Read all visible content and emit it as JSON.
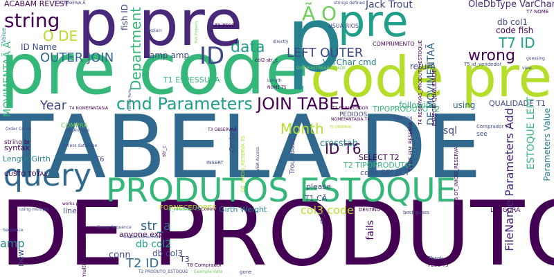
{
  "colors": {
    "background": "#ffffff",
    "dark_purple": "#440154",
    "purple": "#482878",
    "indigo": "#3e4989",
    "blue": "#31688e",
    "teal": "#26828e",
    "teal_green": "#1f9e89",
    "green": "#35b779",
    "light_green": "#6ece58",
    "lime": "#b5de2b",
    "yellow": "#fde725"
  },
  "words": {
    "tabela_de": "TABELA DE",
    "de_produtos": "DE PRODUTOS",
    "pre_code_left": "pre code",
    "code_pre_right": "code pre",
    "p_pre": "p pre",
    "p_big": "p",
    "pre_top": "pre",
    "produtos_estoque": "PRODUTOS ESTOQUE",
    "query": "query",
    "cmd_parameters": "cmd Parameters",
    "join_tabela": "JOIN TABELA",
    "string": "string",
    "a_o": "Ã O",
    "id_top": "ID",
    "data": "data",
    "left_outer": "LEFT OUTER",
    "wrong": "wrong",
    "t7_id": "T7 ID",
    "outer_join": "OUTER JOIN",
    "o_de": "O DE",
    "year": "Year",
    "month": "Month",
    "id_t6": "ID T6",
    "t2_id": "T2 ID",
    "str_a": "str_a",
    "db_col2": "db col2",
    "db_col3": "db col3",
    "conn": "conn",
    "amp": "amp",
    "amp_amp": "amp amp",
    "fails": "fails",
    "col3_code": "col3 code",
    "sql": "sql",
    "crosstab": "crosstab",
    "fish_id": "fish ID",
    "department": "Department",
    "movimenta_left": "MOVIMENTAÃ Ã",
    "movimenta_mid": "DE MOVIMENTAÃ",
    "filename_parameters": "FileName Parameters Add",
    "estoque_left": "ESTOQUE LEFT",
    "parameters_value": "Parameters Value",
    "id_name": "ID Name",
    "varchar_cmd": "VarChar cmd",
    "oledbtype_varchar": "OleDbType VarChar",
    "jack_trout": "Jack Trout",
    "code_fish": "code fish",
    "db_col1": "db col1",
    "return": "return",
    "using": "using",
    "following": "following",
    "qualidade_t1": "QUALIDADE T1",
    "tipoproduto_t2": "TIPOPRODUTO T2",
    "t2_tipoproduto": "T2 TIPOPRODUTO",
    "select_t2": "SELECT T2",
    "code_select": "code SELECT",
    "t1_ca": "T1 CÃ",
    "please": "please",
    "anyone_explain": "anyone explain",
    "t3": "T3",
    "t1_espessura": "T1 ESPESSURA",
    "acabam_revest": "ACABAM REVEST",
    "length_girth": "Length Girth",
    "girth_weight": "Girth Weight",
    "syntax": "syntax",
    "fornecedores": "FORNECEDORES",
    "t6": "T6",
    "line": "line",
    "new": "new",
    "order": "Order",
    "trout_bass": "Trout Bass",
    "compra": "COMPRA",
    "string_br": "string br",
    "custo_total": "CUSTO TOTAL",
    "pedidos": "PEDIDOS",
    "largura": "LARGURA",
    "comprimento": "COMPRIMENTO",
    "usua_rios": "USUÁ RIOS",
    "t7_nome": "T7 NOME",
    "see": "see",
    "comprador_t7": "Comprador T7",
    "t1_peso": "T1 PESO",
    "str_c": "str_c",
    "col2_str_c": "col2 str_c",
    "str_b": "str_b",
    "t5_id_vendedor": "T5 id_vendedor",
    "insert": "INSERT",
    "t8_comprador": "T8 Comprador",
    "peso_t5": "PESO T5",
    "destino_t3": "DESTINO T3",
    "best_guess": "best guess",
    "gone": "gone",
    "thank": "Thank",
    "order_group": "Order Group",
    "access_database": "Access database",
    "t4_nomefantasia": "T4 NOMEFANTASIA",
    "t3_fornecedor": "T3 FORNECEDOR",
    "t3_observaa": "T3 OBSERVAÃ",
    "t1_observa": "T1 OBSERVA Ã",
    "nomefantasia_t4": "NOMEFANTASIA T4",
    "sequence": "Sequence",
    "group_sequence": "Group Sequence",
    "multiple_variables": "multiple variables",
    "t2_produto_estoque": "T2 PRODUTO_ESTOQUE",
    "example_data": "Example data",
    "oledbconnection": "OleDbConnection",
    "oledbcommand": "OleDbCommand",
    "works_perfectly": "works perfectly",
    "using_multiple": "using multiple",
    "strings_defined": "strings defined",
    "directly": "directly",
    "length": "Length",
    "nome_t5": "NOME T5",
    "view": "view",
    "guessing": "guessing",
    "especif_qualidade": "ESPECIF QUALIDADE",
    "digorastreabilidade": "DIGORASTREABILIDADE",
    "t4_reservas": "T4 RESERVAS_PRODUTO_ESTOQUE",
    "t5_dt_fim": "T5 DT_FIM_RESERVA",
    "t5_dt_inicio": "T5 DT_INICIO_RESERVA",
    "dt_inicio_reserva": "DT_INICIO_RESERVA T5",
    "id_vendedor_t5": "id_vendedor T5",
    "value": "Value",
    "br_anyone": "br Anyone",
    "vba_access": "VBA Access",
    "format_perfe": "Format Perfe",
    "explain": "explain",
    "reporting": "reporting",
    "t5_observa": "T5 OBSERVA",
    "fish_property": "Fish Property"
  }
}
